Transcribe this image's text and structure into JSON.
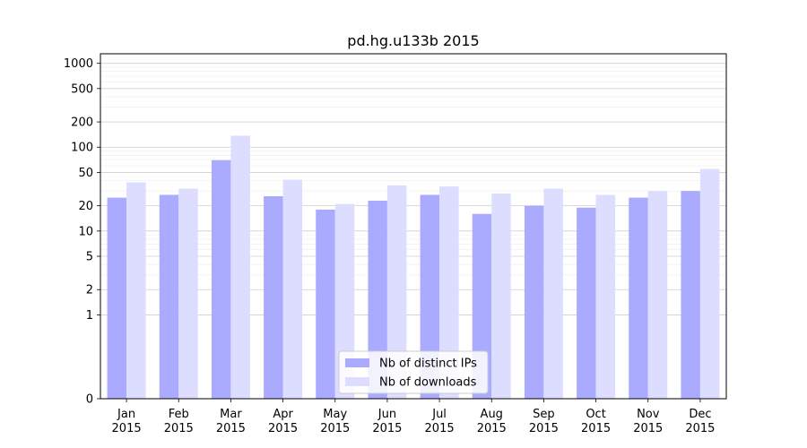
{
  "chart_data": {
    "type": "bar",
    "title": "pd.hg.u133b 2015",
    "categories": [
      [
        "Jan",
        "2015"
      ],
      [
        "Feb",
        "2015"
      ],
      [
        "Mar",
        "2015"
      ],
      [
        "Apr",
        "2015"
      ],
      [
        "May",
        "2015"
      ],
      [
        "Jun",
        "2015"
      ],
      [
        "Jul",
        "2015"
      ],
      [
        "Aug",
        "2015"
      ],
      [
        "Sep",
        "2015"
      ],
      [
        "Oct",
        "2015"
      ],
      [
        "Nov",
        "2015"
      ],
      [
        "Dec",
        "2015"
      ]
    ],
    "series": [
      {
        "name": "Nb of distinct IPs",
        "color": "#aaaaff",
        "values": [
          25,
          27,
          70,
          26,
          18,
          23,
          27,
          16,
          20,
          19,
          25,
          30
        ]
      },
      {
        "name": "Nb of downloads",
        "color": "#ddddff",
        "values": [
          38,
          32,
          137,
          41,
          21,
          35,
          34,
          28,
          32,
          27,
          30,
          55
        ]
      }
    ],
    "y_ticks": [
      0,
      1,
      2,
      5,
      10,
      20,
      50,
      100,
      200,
      500,
      1000
    ],
    "ylim": [
      0,
      1300
    ],
    "yscale": "symlog",
    "grid": true,
    "legend_position": "lower-center"
  }
}
